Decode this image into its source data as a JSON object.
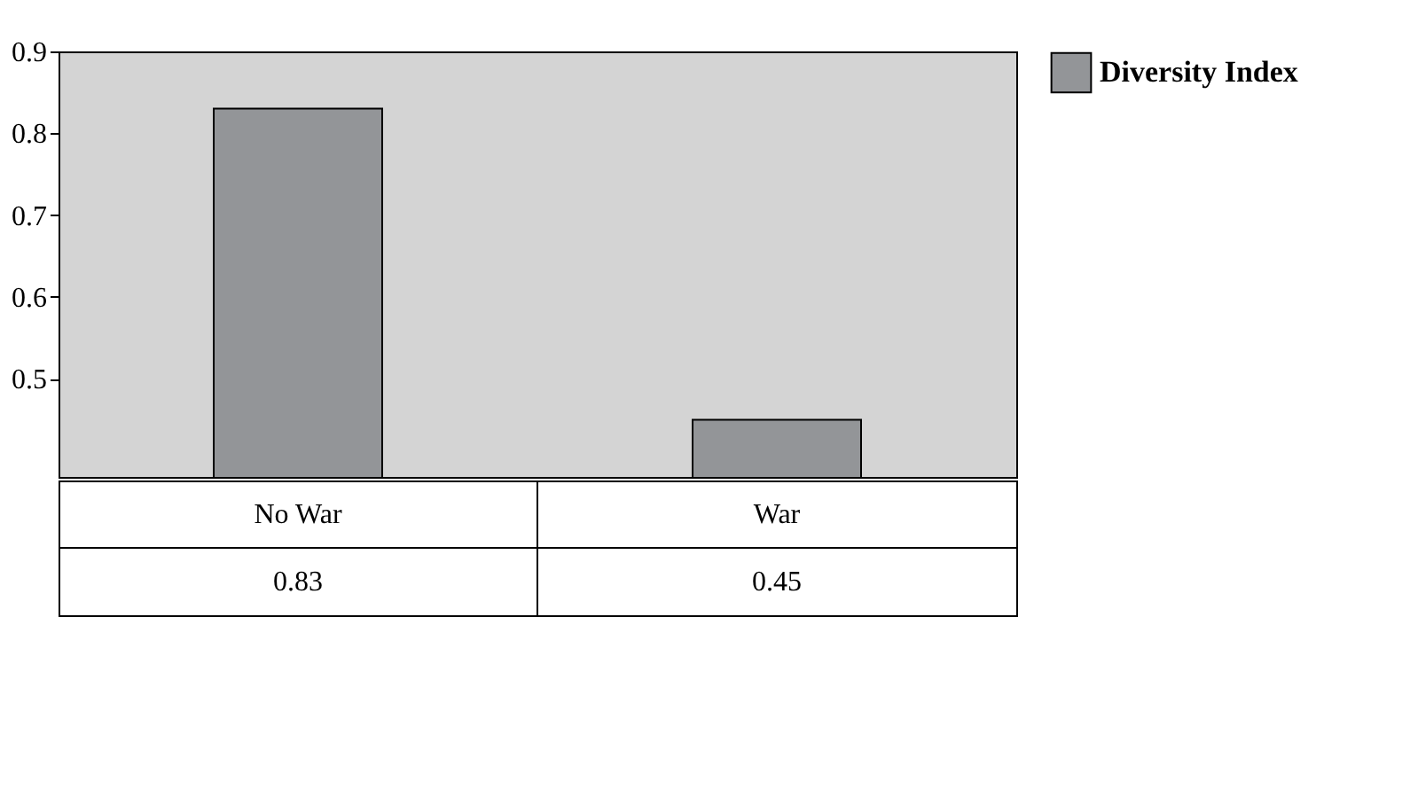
{
  "chart_data": {
    "type": "bar",
    "categories": [
      "No War",
      "War"
    ],
    "series": [
      {
        "name": "Diversity Index",
        "color": "#939598",
        "values": [
          0.83,
          0.45
        ]
      }
    ],
    "ylim": [
      0.38,
      0.9
    ],
    "yticks": [
      0.5,
      0.6,
      0.7,
      0.8,
      0.9
    ],
    "data_labels": true,
    "legend": "right",
    "grid": false
  }
}
